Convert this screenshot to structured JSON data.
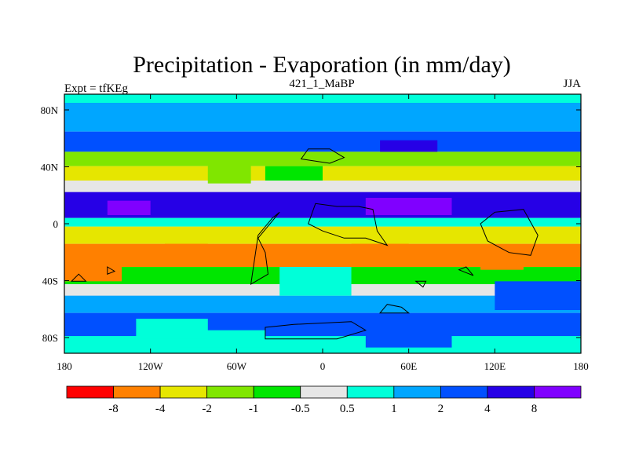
{
  "chart_data": {
    "type": "heatmap",
    "title": "Precipitation - Evaporation (in mm/day)",
    "subtitle_left": "Expt = tfKEg",
    "subtitle_center": "421_1_MaBP",
    "subtitle_right": "JJA",
    "x_ticks": [
      "180",
      "120W",
      "60W",
      "0",
      "60E",
      "120E",
      "180"
    ],
    "y_ticks": [
      "80N",
      "40N",
      "0",
      "40S",
      "80S"
    ],
    "colorbar": {
      "labels": [
        "-8",
        "-4",
        "-2",
        "-1",
        "-0.5",
        "0.5",
        "1",
        "2",
        "4",
        "8"
      ],
      "colors": [
        "#ff0000",
        "#ff8000",
        "#e6e600",
        "#80e600",
        "#00e600",
        "#e6e6e6",
        "#00ffd9",
        "#00a6ff",
        "#0050ff",
        "#2600e6",
        "#8000ff"
      ]
    },
    "bands": [
      {
        "lat": [
          84,
          90
        ],
        "level": 6
      },
      {
        "lat": [
          64,
          84
        ],
        "level": 7
      },
      {
        "lat": [
          50,
          64
        ],
        "level": 8
      },
      {
        "lat": [
          40,
          50
        ],
        "level": 3
      },
      {
        "lat": [
          30,
          40
        ],
        "level": 2
      },
      {
        "lat": [
          22,
          30
        ],
        "level": 5
      },
      {
        "lat": [
          4,
          22
        ],
        "level": 9
      },
      {
        "lat": [
          -2,
          4
        ],
        "level": 6
      },
      {
        "lat": [
          -14,
          -2
        ],
        "level": 2
      },
      {
        "lat": [
          -30,
          -14
        ],
        "level": 1
      },
      {
        "lat": [
          -42,
          -30
        ],
        "level": 4
      },
      {
        "lat": [
          -50,
          -42
        ],
        "level": 5
      },
      {
        "lat": [
          -62,
          -50
        ],
        "level": 7
      },
      {
        "lat": [
          -78,
          -62
        ],
        "level": 8
      },
      {
        "lat": [
          -90,
          -78
        ],
        "level": 6
      }
    ],
    "patches": [
      {
        "lon": [
          -180,
          -140
        ],
        "lat": [
          -40,
          -18
        ],
        "level": 1
      },
      {
        "lon": [
          -110,
          -80
        ],
        "lat": [
          -28,
          -14
        ],
        "level": 1
      },
      {
        "lon": [
          20,
          60
        ],
        "lat": [
          -28,
          -14
        ],
        "level": 1
      },
      {
        "lon": [
          110,
          140
        ],
        "lat": [
          -32,
          -18
        ],
        "level": 1
      },
      {
        "lon": [
          -80,
          -50
        ],
        "lat": [
          28,
          42
        ],
        "level": 3
      },
      {
        "lon": [
          -30,
          20
        ],
        "lat": [
          -50,
          -30
        ],
        "level": 6
      },
      {
        "lon": [
          -40,
          0
        ],
        "lat": [
          30,
          40
        ],
        "level": 4
      },
      {
        "lon": [
          30,
          90
        ],
        "lat": [
          6,
          18
        ],
        "level": 10
      },
      {
        "lon": [
          -150,
          -120
        ],
        "lat": [
          6,
          16
        ],
        "level": 10
      },
      {
        "lon": [
          40,
          80
        ],
        "lat": [
          50,
          58
        ],
        "level": 9
      },
      {
        "lon": [
          -100,
          -40
        ],
        "lat": [
          -86,
          -74
        ],
        "level": 6
      },
      {
        "lon": [
          30,
          90
        ],
        "lat": [
          -86,
          -70
        ],
        "level": 8
      },
      {
        "lon": [
          -130,
          -80
        ],
        "lat": [
          -80,
          -66
        ],
        "level": 6
      },
      {
        "lon": [
          120,
          180
        ],
        "lat": [
          -60,
          -40
        ],
        "level": 8
      }
    ]
  }
}
